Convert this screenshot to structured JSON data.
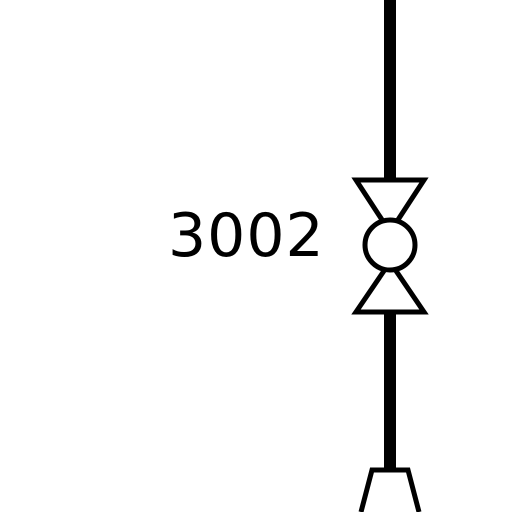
{
  "diagram": {
    "valve": {
      "tag": "3002",
      "symbol": "ball-valve-icon"
    },
    "fitting": {
      "symbol": "reducer-icon"
    },
    "line_color": "#000000",
    "background_color": "#ffffff"
  }
}
